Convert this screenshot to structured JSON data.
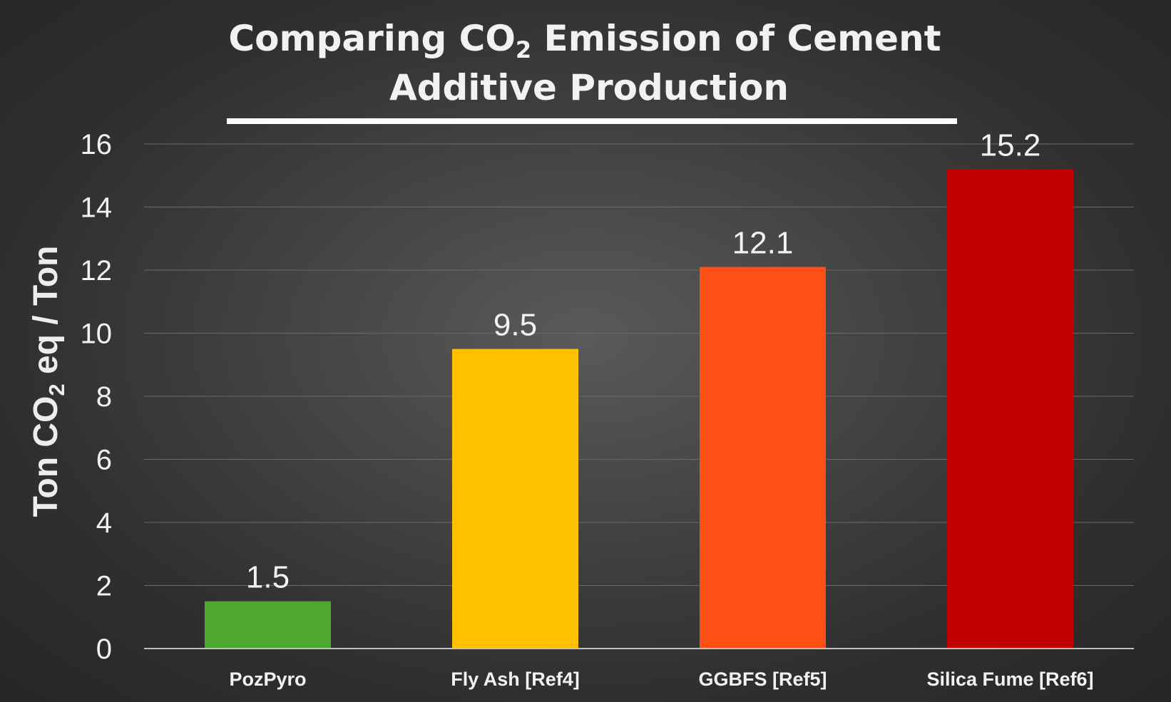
{
  "chart_data": {
    "type": "bar",
    "title": {
      "line1_pre": "Comparing CO",
      "line1_sub": "2",
      "line1_post": " Emission of Cement",
      "line2": "Additive Production"
    },
    "ylabel": {
      "pre": "Ton CO",
      "sub": "2",
      "post": " eq / Ton"
    },
    "xlabel": "",
    "ylim": [
      0,
      16
    ],
    "yticks": [
      0,
      2,
      4,
      6,
      8,
      10,
      12,
      14,
      16
    ],
    "categories": [
      "PozPyro",
      "Fly Ash [Ref4]",
      "GGBFS [Ref5]",
      "Silica Fume [Ref6]"
    ],
    "values": [
      1.5,
      9.5,
      12.1,
      15.2
    ],
    "data_labels": [
      "1.5",
      "9.5",
      "12.1",
      "15.2"
    ],
    "colors": [
      "#4ea72e",
      "#ffc000",
      "#ff4f14",
      "#c00000"
    ],
    "grid": true,
    "legend": "none"
  }
}
